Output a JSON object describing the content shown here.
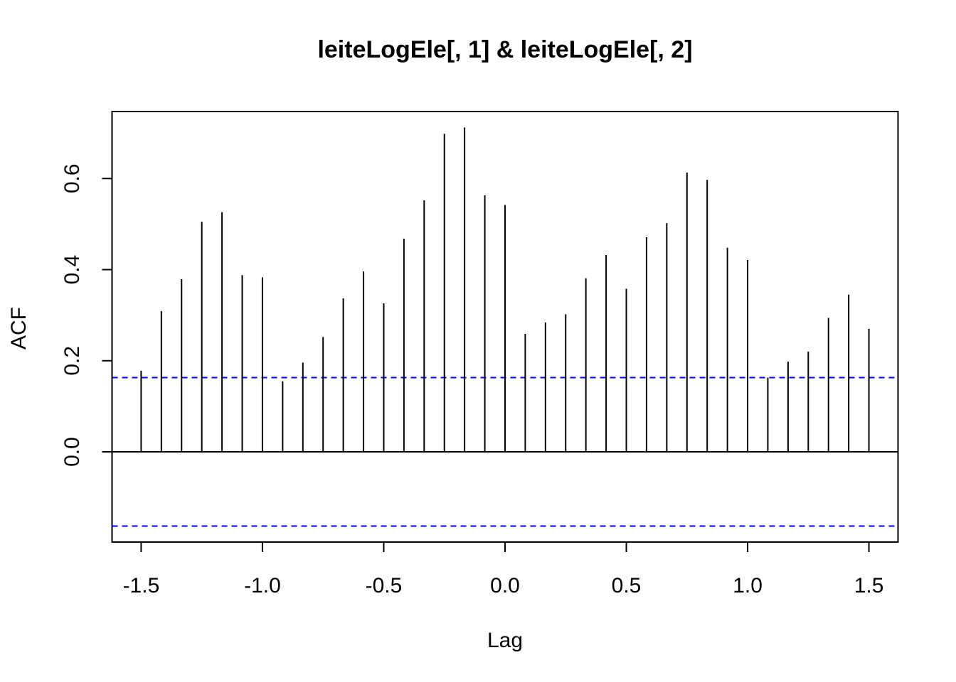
{
  "chart_data": {
    "type": "bar",
    "title": "leiteLogEle[, 1] & leiteLogEle[, 2]",
    "xlabel": "Lag",
    "ylabel": "ACF",
    "xlim": [
      -1.62,
      1.62
    ],
    "ylim": [
      -0.198,
      0.747
    ],
    "x_ticks": [
      -1.5,
      -1.0,
      -0.5,
      0.0,
      0.5,
      1.0,
      1.5
    ],
    "x_tick_labels": [
      "-1.5",
      "-1.0",
      "-0.5",
      "0.0",
      "0.5",
      "1.0",
      "1.5"
    ],
    "y_ticks": [
      0.0,
      0.2,
      0.4,
      0.6
    ],
    "y_tick_labels": [
      "0.0",
      "0.2",
      "0.4",
      "0.6"
    ],
    "confidence_bound": 0.163,
    "zero_line": true,
    "grid": false,
    "colors": {
      "bars": "#000000",
      "ci_lines": "#0000ff",
      "frame": "#000000"
    },
    "x": [
      -1.5,
      -1.4167,
      -1.3333,
      -1.25,
      -1.1667,
      -1.0833,
      -1.0,
      -0.9167,
      -0.8333,
      -0.75,
      -0.6667,
      -0.5833,
      -0.5,
      -0.4167,
      -0.3333,
      -0.25,
      -0.1667,
      -0.0833,
      0.0,
      0.0833,
      0.1667,
      0.25,
      0.3333,
      0.4167,
      0.5,
      0.5833,
      0.6667,
      0.75,
      0.8333,
      0.9167,
      1.0,
      1.0833,
      1.1667,
      1.25,
      1.3333,
      1.4167,
      1.5
    ],
    "values": [
      0.178,
      0.309,
      0.379,
      0.505,
      0.526,
      0.388,
      0.383,
      0.155,
      0.196,
      0.252,
      0.337,
      0.396,
      0.326,
      0.468,
      0.552,
      0.698,
      0.712,
      0.563,
      0.542,
      0.259,
      0.284,
      0.302,
      0.381,
      0.432,
      0.358,
      0.471,
      0.502,
      0.613,
      0.597,
      0.448,
      0.421,
      0.163,
      0.198,
      0.22,
      0.294,
      0.345,
      0.27
    ]
  }
}
